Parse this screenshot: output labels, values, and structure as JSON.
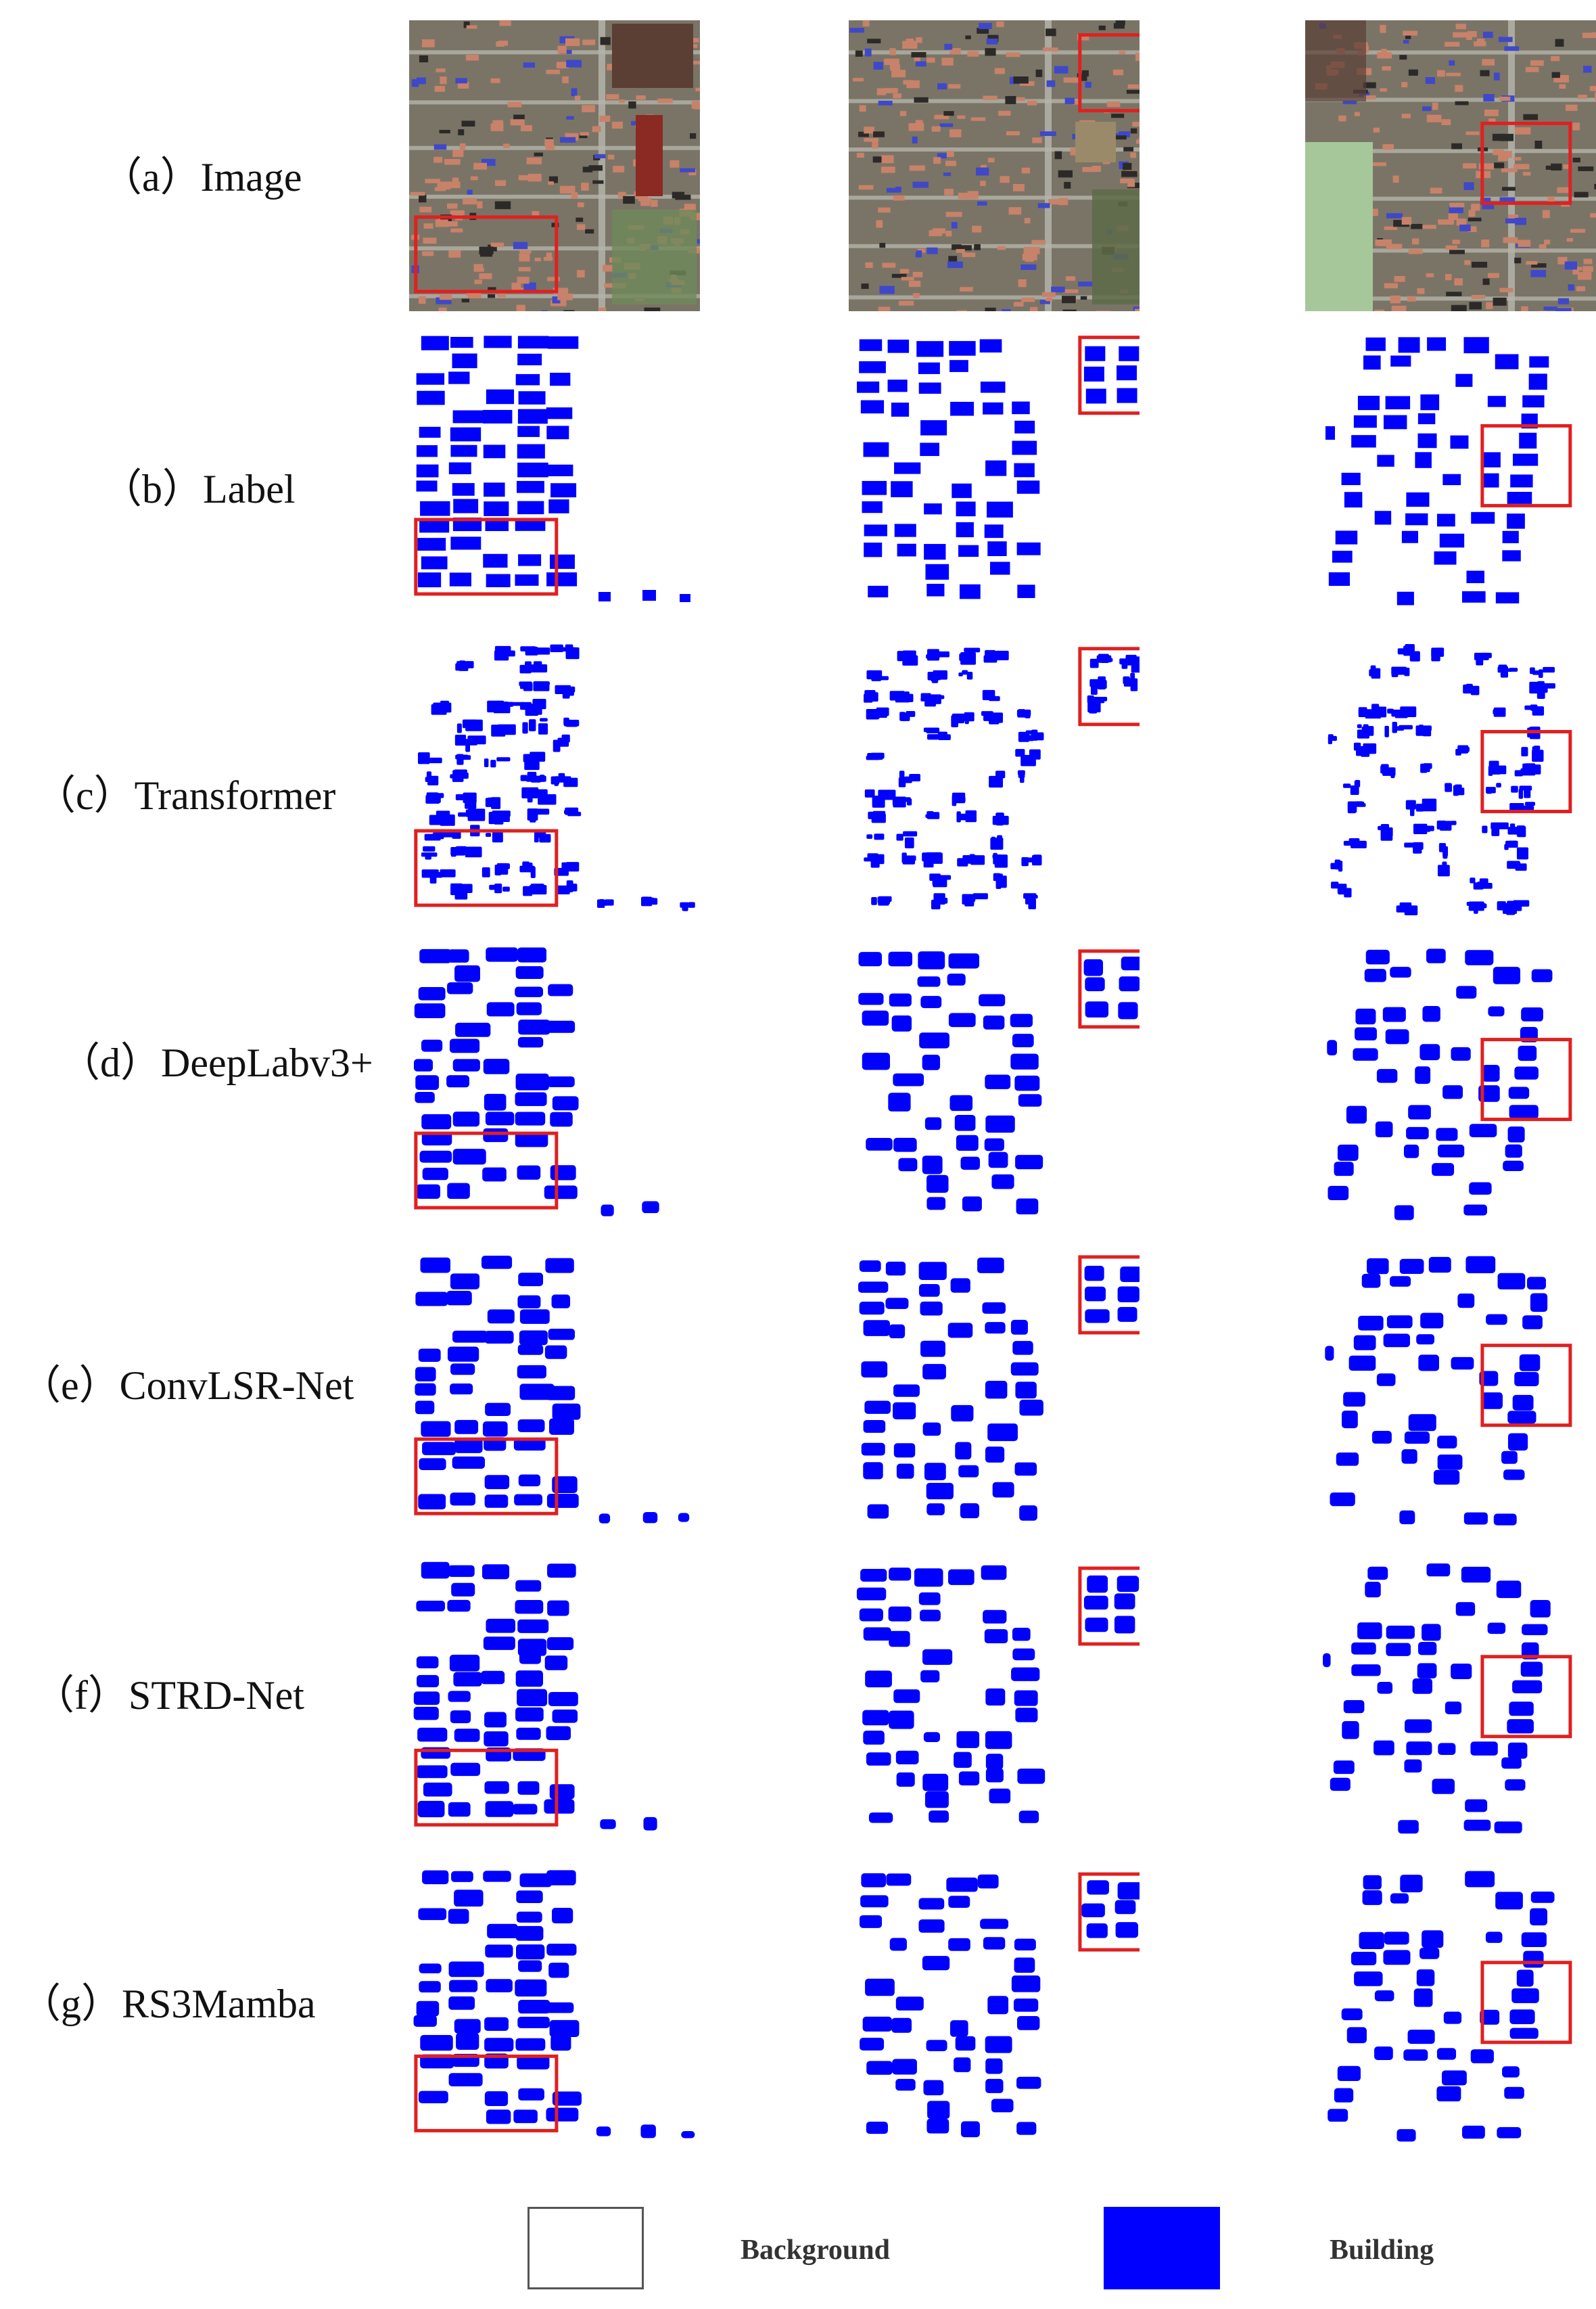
{
  "rows": [
    {
      "id": "a",
      "label": "（a）Image",
      "kind": "image"
    },
    {
      "id": "b",
      "label": "（b）Label",
      "kind": "mask"
    },
    {
      "id": "c",
      "label": "（c）Transformer",
      "kind": "mask"
    },
    {
      "id": "d",
      "label": "（d）DeepLabv3+",
      "kind": "mask"
    },
    {
      "id": "e",
      "label": "（e）ConvLSR-Net",
      "kind": "mask"
    },
    {
      "id": "f",
      "label": "（f）STRD-Net",
      "kind": "mask"
    },
    {
      "id": "g",
      "label": "（g）RS3Mamba",
      "kind": "mask"
    }
  ],
  "legend": [
    {
      "label": "Background",
      "color": "#ffffff"
    },
    {
      "label": "Building",
      "color": "#0000ff"
    }
  ],
  "colors": {
    "building": "#0000ff",
    "highlight_box": "#e02020",
    "roof": "#c8826a",
    "road": "#b4b4aa",
    "vegetation": "#6f8a5a"
  }
}
